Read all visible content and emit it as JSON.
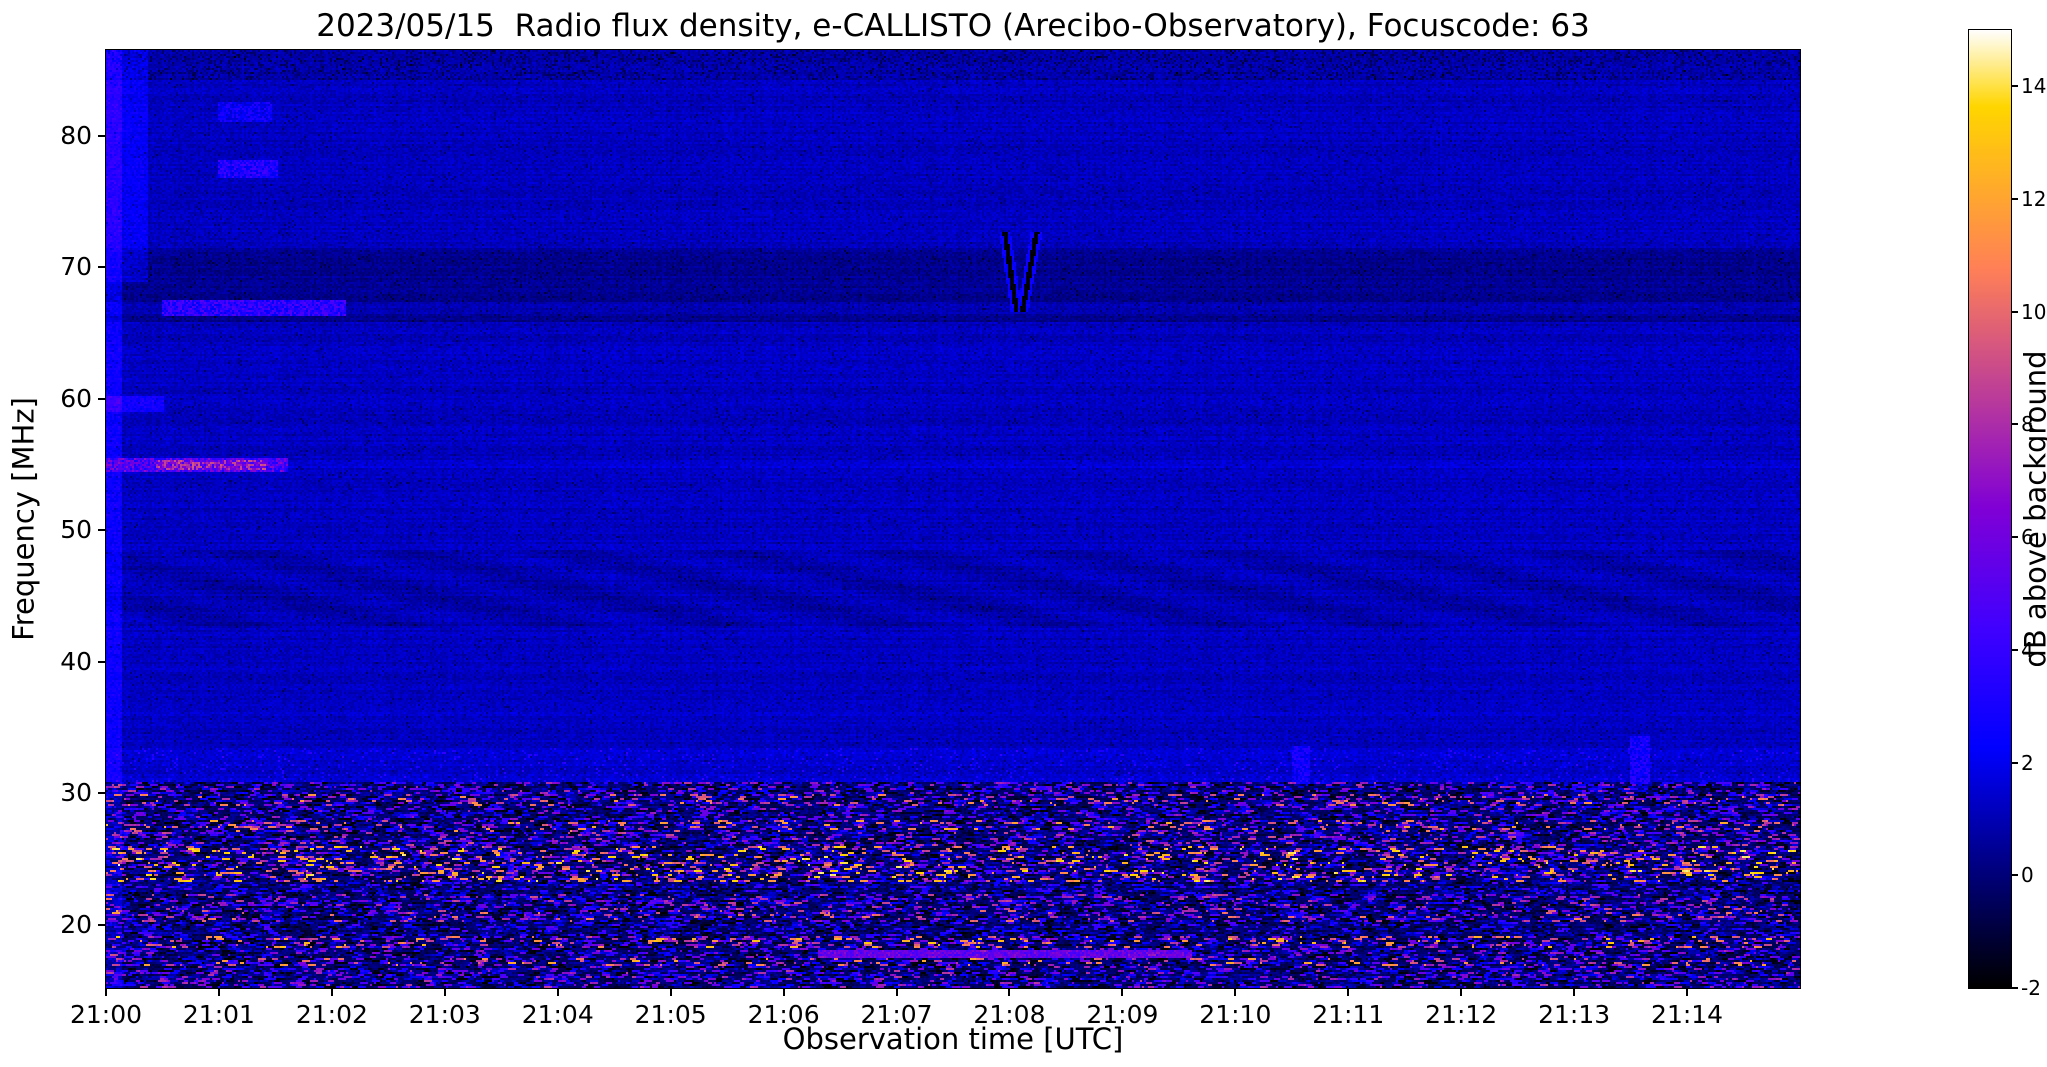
{
  "chart_data": {
    "type": "heatmap",
    "title": "2023/05/15  Radio flux density, e-CALLISTO (Arecibo-Observatory), Focuscode: 63",
    "xlabel": "Observation time [UTC]",
    "ylabel": "Frequency [MHz]",
    "colorbar_label": "dB above background",
    "x_axis": {
      "range_minutes": [
        0,
        15
      ],
      "tick_labels": [
        "21:00",
        "21:01",
        "21:02",
        "21:03",
        "21:04",
        "21:05",
        "21:06",
        "21:07",
        "21:08",
        "21:09",
        "21:10",
        "21:11",
        "21:12",
        "21:13",
        "21:14"
      ]
    },
    "y_axis": {
      "range_mhz": [
        15.2,
        86.5
      ],
      "ticks": [
        20,
        30,
        40,
        50,
        60,
        70,
        80
      ]
    },
    "color_axis": {
      "range_db": [
        -2,
        15
      ],
      "ticks": [
        -2,
        0,
        2,
        4,
        6,
        8,
        10,
        12,
        14
      ]
    },
    "colormap": {
      "name": "gnuplot2-like",
      "stops": [
        [
          0.0,
          "#000000"
        ],
        [
          0.125,
          "#000080"
        ],
        [
          0.25,
          "#0000FF"
        ],
        [
          0.375,
          "#4000FF"
        ],
        [
          0.5,
          "#8000D6"
        ],
        [
          0.625,
          "#BF4096"
        ],
        [
          0.75,
          "#FF8057"
        ],
        [
          0.875,
          "#FFBF17"
        ],
        [
          0.92,
          "#FFD600"
        ],
        [
          1.0,
          "#FFFFFF"
        ]
      ]
    },
    "background": {
      "level_db": 1.2,
      "noise_db": 0.45
    },
    "rfi_top_mhz": 30.8,
    "rfi_subbands": [
      [
        15.2,
        16.8,
        0.55
      ],
      [
        16.8,
        17.5,
        0.8
      ],
      [
        17.5,
        18.2,
        0.5
      ],
      [
        18.2,
        19.2,
        0.85
      ],
      [
        19.2,
        20.2,
        0.35
      ],
      [
        20.2,
        21.2,
        0.7
      ],
      [
        21.2,
        22.4,
        0.6
      ],
      [
        22.4,
        23.2,
        0.35
      ],
      [
        23.2,
        26.0,
        0.92
      ],
      [
        26.0,
        27.0,
        0.6
      ],
      [
        27.0,
        28.0,
        0.8
      ],
      [
        28.0,
        29.0,
        0.5
      ],
      [
        29.0,
        30.0,
        0.75
      ],
      [
        30.0,
        30.8,
        0.55
      ]
    ],
    "bands": [
      {
        "name": "dark-band-66-71mhz",
        "f": [
          65.8,
          71.4
        ],
        "offset_db": -0.75
      },
      {
        "name": "line-67mhz",
        "f": [
          66.4,
          67.3
        ],
        "offset_db": 0.45
      },
      {
        "name": "line-55mhz",
        "f": [
          54.7,
          55.3
        ],
        "offset_db": 0.35
      },
      {
        "name": "wavy-band-43-48mhz",
        "f": [
          42.5,
          48.5
        ],
        "offset_db": -0.25,
        "wavy": true
      },
      {
        "name": "speckle-band-31-33mhz",
        "f": [
          30.8,
          33.5
        ],
        "offset_db": 0.2,
        "bright_speckle": 0.1
      },
      {
        "name": "line-36mhz",
        "f": [
          35.9,
          36.3
        ],
        "offset_db": 0.25
      },
      {
        "name": "dark-speckle-top",
        "f": [
          84.2,
          86.5
        ],
        "offset_db": -0.3,
        "dark_speckle": 0.35
      }
    ],
    "features": [
      {
        "name": "startup-column",
        "t": [
          0.0,
          0.13
        ],
        "f": [
          15.2,
          86.5
        ],
        "db": 1.4,
        "mode": "add"
      },
      {
        "name": "startup-high-band",
        "t": [
          0.0,
          0.35
        ],
        "f": [
          69.0,
          86.5
        ],
        "db": 1.0,
        "mode": "add"
      },
      {
        "name": "patch-60mhz",
        "t": [
          0.0,
          0.5
        ],
        "f": [
          59.2,
          60.2
        ],
        "db": 1.6,
        "mode": "add"
      },
      {
        "name": "burst-55mhz",
        "t": [
          0.0,
          1.6
        ],
        "f": [
          54.6,
          55.45
        ],
        "db": 6.0,
        "mode": "max"
      },
      {
        "name": "burst-55mhz-core",
        "t": [
          0.45,
          1.4
        ],
        "f": [
          54.7,
          55.35
        ],
        "db": 8.2,
        "mode": "max"
      },
      {
        "name": "burst-67mhz",
        "t": [
          0.5,
          2.1
        ],
        "f": [
          66.5,
          67.45
        ],
        "db": 4.5,
        "mode": "max"
      },
      {
        "name": "patch-77mhz",
        "t": [
          1.0,
          1.5
        ],
        "f": [
          76.9,
          78.2
        ],
        "db": 4.0,
        "mode": "max"
      },
      {
        "name": "patch-82mhz",
        "t": [
          1.0,
          1.45
        ],
        "f": [
          81.2,
          82.6
        ],
        "db": 3.0,
        "mode": "max"
      },
      {
        "name": "dark-burst-2108",
        "t": [
          7.9,
          8.3
        ],
        "f": [
          66.8,
          72.6
        ],
        "db": -2.0,
        "mode": "squiggle"
      },
      {
        "name": "drifting-line-18mhz",
        "t": [
          6.3,
          9.6
        ],
        "f": [
          17.7,
          18.1
        ],
        "db": 6.0,
        "mode": "line"
      },
      {
        "name": "spike-32mhz-a",
        "t": [
          10.5,
          10.64
        ],
        "f": [
          30.8,
          33.6
        ],
        "db": 3.2,
        "mode": "max"
      },
      {
        "name": "spike-32mhz-b",
        "t": [
          13.5,
          13.66
        ],
        "f": [
          30.8,
          34.3
        ],
        "db": 3.4,
        "mode": "max"
      }
    ]
  }
}
